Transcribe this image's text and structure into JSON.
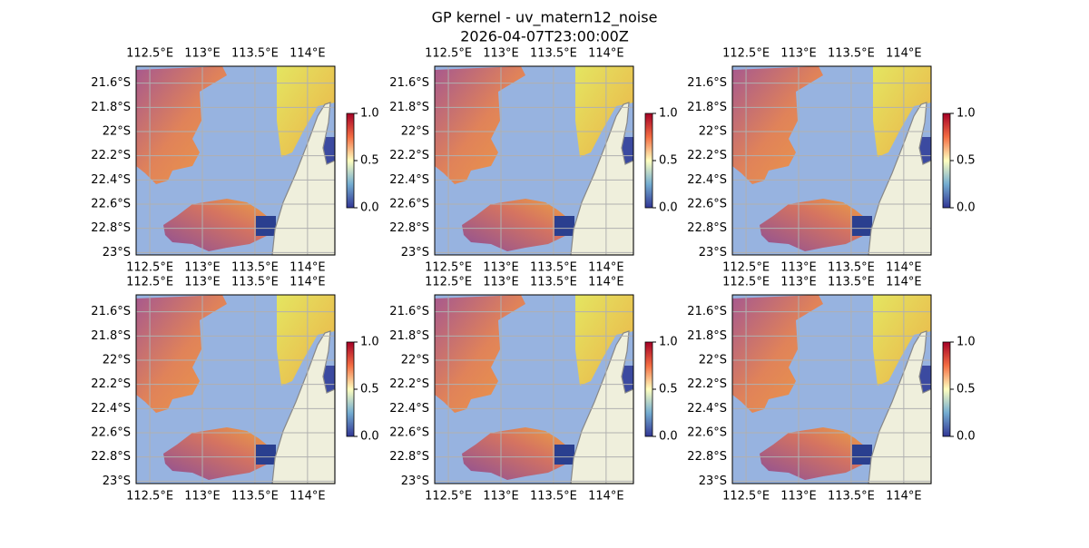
{
  "title": [
    "GP kernel - uv_matern12_noise",
    "2026-04-07T23:00:00Z"
  ],
  "map": {
    "xlim": [
      112.37,
      114.26
    ],
    "ylim": [
      -23.02,
      -21.46
    ],
    "xticks": [
      {
        "value": 112.5,
        "label": "112.5°E"
      },
      {
        "value": 113,
        "label": "113°E"
      },
      {
        "value": 113.5,
        "label": "113.5°E"
      },
      {
        "value": 114,
        "label": "114°E"
      }
    ],
    "yticks": [
      {
        "value": -21.6,
        "label": "21.6°S"
      },
      {
        "value": -21.8,
        "label": "21.8°S"
      },
      {
        "value": -22,
        "label": "22°S"
      },
      {
        "value": -22.2,
        "label": "22.2°S"
      },
      {
        "value": -22.4,
        "label": "22.4°S"
      },
      {
        "value": -22.6,
        "label": "22.6°S"
      },
      {
        "value": -22.8,
        "label": "22.8°S"
      },
      {
        "value": -23,
        "label": "23°S"
      }
    ],
    "grid": true,
    "ocean_color": "#97b3e0",
    "land_color": "#efefdc"
  },
  "colorbar": {
    "ylim": [
      0,
      1
    ],
    "yticks": [
      {
        "value": 0,
        "label": "0.0"
      },
      {
        "value": 0.5,
        "label": "0.5"
      },
      {
        "value": 1,
        "label": "1.0"
      }
    ],
    "colors": [
      "#313695",
      "#74add1",
      "#ffffbf",
      "#f46d43",
      "#a50026"
    ]
  }
}
